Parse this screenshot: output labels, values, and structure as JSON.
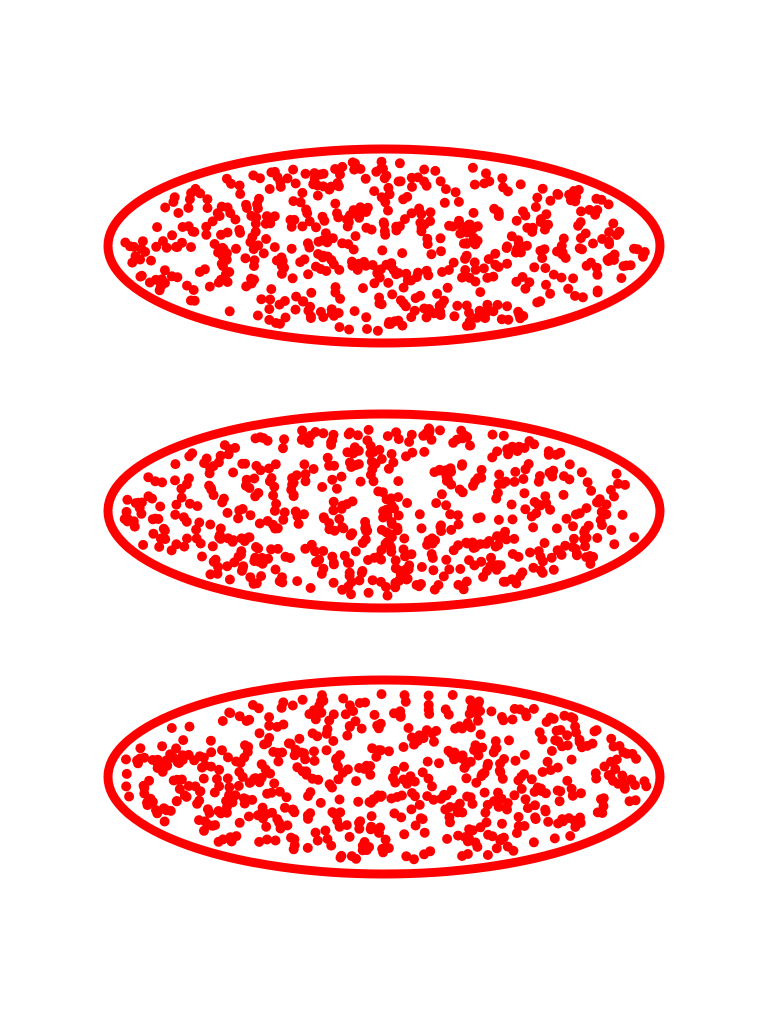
{
  "colors": {
    "background": "#ffffff",
    "ellipse_stroke": "#ff0000",
    "dot_fill": "#ff0000"
  },
  "ellipses": [
    {
      "name": "top",
      "dot_count": 520,
      "seed": 11
    },
    {
      "name": "middle",
      "dot_count": 540,
      "seed": 23
    },
    {
      "name": "bottom",
      "dot_count": 560,
      "seed": 37
    }
  ]
}
